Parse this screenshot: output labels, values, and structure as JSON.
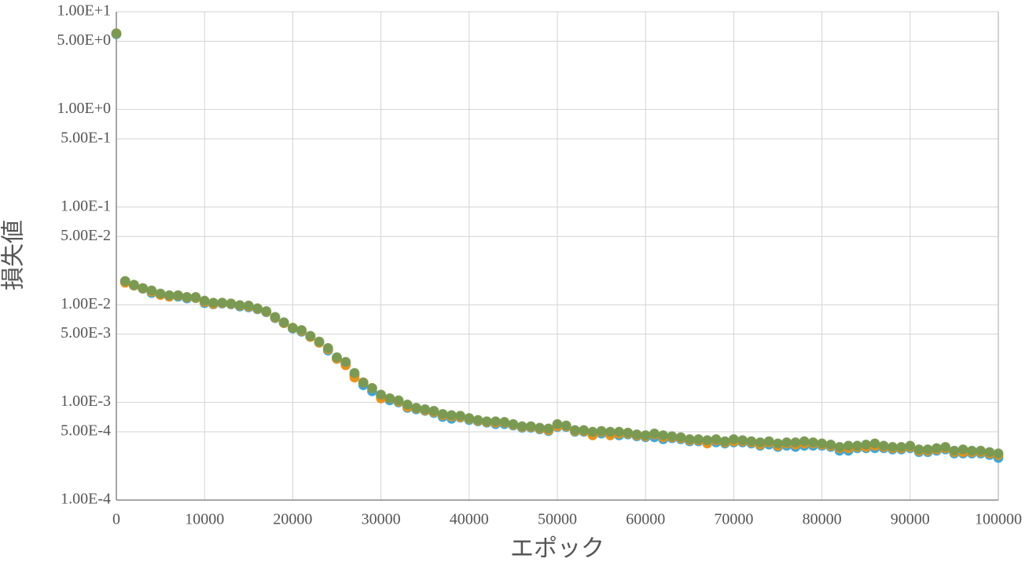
{
  "chart_data": {
    "type": "scatter",
    "x_label": "エポック",
    "y_label": "損失値",
    "yscale": "log",
    "grid": true,
    "xlim": [
      0,
      100000
    ],
    "xticks": [
      0,
      10000,
      20000,
      30000,
      40000,
      50000,
      60000,
      70000,
      80000,
      90000,
      100000
    ],
    "ylim": [
      0.0001,
      10
    ],
    "yticks": [
      {
        "value": 10,
        "label": "1.00E+1"
      },
      {
        "value": 5,
        "label": "5.00E+0"
      },
      {
        "value": 1,
        "label": "1.00E+0"
      },
      {
        "value": 0.5,
        "label": "5.00E-1"
      },
      {
        "value": 0.1,
        "label": "1.00E-1"
      },
      {
        "value": 0.05,
        "label": "5.00E-2"
      },
      {
        "value": 0.01,
        "label": "1.00E-2"
      },
      {
        "value": 0.005,
        "label": "5.00E-3"
      },
      {
        "value": 0.001,
        "label": "1.00E-3"
      },
      {
        "value": 0.0005,
        "label": "5.00E-4"
      },
      {
        "value": 0.0001,
        "label": "1.00E-4"
      }
    ],
    "x": [
      0,
      1000,
      2000,
      3000,
      4000,
      5000,
      6000,
      7000,
      8000,
      9000,
      10000,
      11000,
      12000,
      13000,
      14000,
      15000,
      16000,
      17000,
      18000,
      19000,
      20000,
      21000,
      22000,
      23000,
      24000,
      25000,
      26000,
      27000,
      28000,
      29000,
      30000,
      31000,
      32000,
      33000,
      34000,
      35000,
      36000,
      37000,
      38000,
      39000,
      40000,
      41000,
      42000,
      43000,
      44000,
      45000,
      46000,
      47000,
      48000,
      49000,
      50000,
      51000,
      52000,
      53000,
      54000,
      55000,
      56000,
      57000,
      58000,
      59000,
      60000,
      61000,
      62000,
      63000,
      64000,
      65000,
      66000,
      67000,
      68000,
      69000,
      70000,
      71000,
      72000,
      73000,
      74000,
      75000,
      76000,
      77000,
      78000,
      79000,
      80000,
      81000,
      82000,
      83000,
      84000,
      85000,
      86000,
      87000,
      88000,
      89000,
      90000,
      91000,
      92000,
      93000,
      94000,
      95000,
      96000,
      97000,
      98000,
      99000,
      100000
    ],
    "series": [
      {
        "color": "#3ea6d6",
        "values": [
          5.9,
          0.0172,
          0.0157,
          0.0146,
          0.0132,
          0.0128,
          0.0122,
          0.0121,
          0.0116,
          0.0117,
          0.0104,
          0.0101,
          0.0103,
          0.0101,
          0.0096,
          0.0094,
          0.009,
          0.0084,
          0.0073,
          0.0065,
          0.0057,
          0.0053,
          0.0047,
          0.0041,
          0.0034,
          0.0028,
          0.0025,
          0.0019,
          0.0015,
          0.0013,
          0.00115,
          0.00105,
          0.001,
          0.00088,
          0.00085,
          0.00082,
          0.00078,
          0.00071,
          0.00068,
          0.0007,
          0.00066,
          0.00064,
          0.00062,
          0.0006,
          0.0006,
          0.00058,
          0.00055,
          0.00055,
          0.00053,
          0.00051,
          0.00056,
          0.00056,
          0.0005,
          0.0005,
          0.00047,
          0.00048,
          0.00047,
          0.00046,
          0.00047,
          0.00045,
          0.00044,
          0.00044,
          0.00042,
          0.00043,
          0.00042,
          0.0004,
          0.0004,
          0.00039,
          0.00039,
          0.00038,
          0.00039,
          0.00039,
          0.00038,
          0.00036,
          0.00037,
          0.00035,
          0.00036,
          0.00035,
          0.00036,
          0.00036,
          0.00036,
          0.00035,
          0.00032,
          0.00032,
          0.00034,
          0.00034,
          0.00034,
          0.00034,
          0.00033,
          0.00033,
          0.00034,
          0.00031,
          0.00031,
          0.00032,
          0.00033,
          0.0003,
          0.0003,
          0.0003,
          0.0003,
          0.00029,
          0.00027
        ]
      },
      {
        "color": "#e8931a",
        "values": [
          6,
          0.0168,
          0.0158,
          0.0147,
          0.0136,
          0.0126,
          0.0121,
          0.0124,
          0.0119,
          0.0118,
          0.0107,
          0.0102,
          0.0104,
          0.0102,
          0.0098,
          0.0096,
          0.0091,
          0.0085,
          0.0074,
          0.0065,
          0.0058,
          0.0054,
          0.0047,
          0.0041,
          0.0035,
          0.0028,
          0.0024,
          0.0018,
          0.0016,
          0.0014,
          0.0011,
          0.0011,
          0.00102,
          0.0009,
          0.00087,
          0.00083,
          0.0008,
          0.00074,
          0.00072,
          0.00071,
          0.00068,
          0.00065,
          0.00063,
          0.00062,
          0.00062,
          0.00059,
          0.00056,
          0.00056,
          0.00054,
          0.00052,
          0.00057,
          0.00057,
          0.00051,
          0.00051,
          0.00046,
          0.0005,
          0.00046,
          0.00048,
          0.00048,
          0.00046,
          0.00045,
          0.00047,
          0.00044,
          0.00044,
          0.00043,
          0.00041,
          0.00041,
          0.00038,
          0.00041,
          0.00039,
          0.0004,
          0.0004,
          0.00039,
          0.00037,
          0.00039,
          0.00036,
          0.00038,
          0.00037,
          0.00038,
          0.00038,
          0.00037,
          0.00036,
          0.00034,
          0.00034,
          0.00035,
          0.00035,
          0.00036,
          0.00035,
          0.00034,
          0.00034,
          0.00035,
          0.00032,
          0.00032,
          0.00033,
          0.00034,
          0.00031,
          0.00031,
          0.00031,
          0.00031,
          0.0003,
          0.00029
        ]
      },
      {
        "color": "#7a9a52",
        "values": [
          6,
          0.0175,
          0.016,
          0.0148,
          0.014,
          0.013,
          0.0125,
          0.0125,
          0.012,
          0.012,
          0.011,
          0.0105,
          0.0105,
          0.0103,
          0.0099,
          0.0098,
          0.0092,
          0.0086,
          0.0075,
          0.0066,
          0.0058,
          0.0055,
          0.0048,
          0.0042,
          0.0036,
          0.0029,
          0.0026,
          0.002,
          0.0016,
          0.0014,
          0.0012,
          0.0011,
          0.00105,
          0.00095,
          0.00088,
          0.00085,
          0.00082,
          0.00076,
          0.00074,
          0.00073,
          0.00069,
          0.00066,
          0.00064,
          0.00064,
          0.00063,
          0.0006,
          0.00057,
          0.00057,
          0.00055,
          0.00054,
          0.0006,
          0.00058,
          0.00052,
          0.00052,
          0.0005,
          0.00051,
          0.0005,
          0.0005,
          0.00049,
          0.00047,
          0.00046,
          0.00048,
          0.00046,
          0.00045,
          0.00044,
          0.00042,
          0.00042,
          0.00041,
          0.00042,
          0.0004,
          0.00042,
          0.00041,
          0.0004,
          0.00039,
          0.0004,
          0.00038,
          0.00039,
          0.00039,
          0.0004,
          0.00039,
          0.00038,
          0.00037,
          0.00035,
          0.00036,
          0.00036,
          0.00037,
          0.00038,
          0.00036,
          0.00035,
          0.00035,
          0.00036,
          0.00033,
          0.00033,
          0.00034,
          0.00035,
          0.00032,
          0.00033,
          0.00032,
          0.00032,
          0.00031,
          0.0003
        ]
      }
    ]
  }
}
